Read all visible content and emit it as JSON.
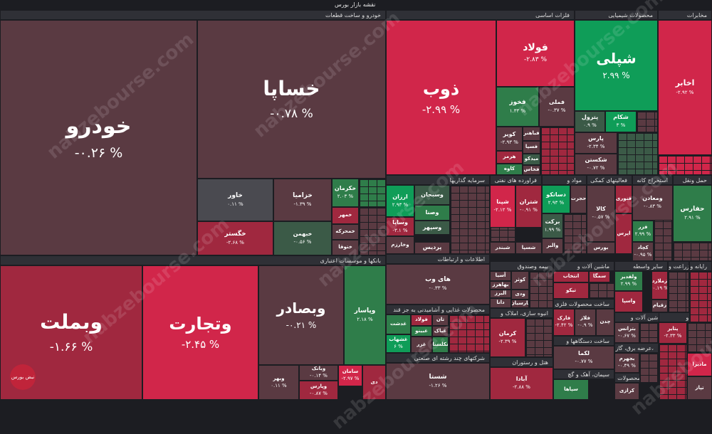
{
  "header": {
    "title": "نقشه بازار بورس"
  },
  "watermark": "nabzebourse.com",
  "logo_text": "نبض بورس",
  "colors": {
    "strong_up": "#0f9d58",
    "up": "#2f7d4a",
    "flat_up": "#3b5a47",
    "flat_down": "#5a3a42",
    "down": "#a0283f",
    "strong_down": "#d1264a",
    "neutral": "#4a4a50"
  },
  "sectors": [
    {
      "label": "خودرو و ساخت قطعات"
    },
    {
      "label": "فلزات اساسی"
    },
    {
      "label": "محصولات شیمیایی"
    },
    {
      "label": "مخابرات"
    },
    {
      "label": "بانکها و موسسات اعتباری"
    },
    {
      "label": "سرمایه گذاریها"
    },
    {
      "label": "فراورده های نفتی"
    },
    {
      "label": "مواد و"
    },
    {
      "label": "فعالیتهای کمکی"
    },
    {
      "label": "استخراج کانه"
    },
    {
      "label": "حمل ونقل"
    },
    {
      "label": "اطلاعات و ارتباطات"
    },
    {
      "label": "بیمه وصندوق"
    },
    {
      "label": "ماشین آلات و"
    },
    {
      "label": "سایر واسطه"
    },
    {
      "label": "زراعت و"
    },
    {
      "label": "رایانه و"
    },
    {
      "label": "محصولات غذایی و آشامیدنی به جز قند"
    },
    {
      "label": "ساخت محصولات فلزی"
    },
    {
      "label": "انبوه سازی، املاک و"
    },
    {
      "label": "ماشین آلات و"
    },
    {
      "label": "لاستیک و"
    },
    {
      "label": "ساخت دستگاهها و"
    },
    {
      "label": "عرضه برق، گاز،"
    },
    {
      "label": "شرکتهای چند رشته ای صنعتی"
    },
    {
      "label": "هتل و رستوران"
    },
    {
      "label": "سیمان، آهک و گچ"
    },
    {
      "label": "سایر محصولات"
    }
  ],
  "tiles": [
    {
      "sym": "خودرو",
      "pct": "-۰.۲۶ %"
    },
    {
      "sym": "خساپا",
      "pct": "-۰.۷۸ %"
    },
    {
      "sym": "خاور",
      "pct": "۰.۱۱ %"
    },
    {
      "sym": "خزامیا",
      "pct": "-۱.۳۹ %"
    },
    {
      "sym": "خکرمان",
      "pct": "۲.۰۳ %"
    },
    {
      "sym": "خگستر",
      "pct": "-۲.۶۸ %"
    },
    {
      "sym": "خبهمن",
      "pct": "-۰.۵۶ %"
    },
    {
      "sym": "خمهر",
      "pct": ""
    },
    {
      "sym": "خمحرکه",
      "pct": ""
    },
    {
      "sym": "ختوقا",
      "pct": ""
    },
    {
      "sym": "ذوب",
      "pct": "-۲.۹۹ %"
    },
    {
      "sym": "فولاد",
      "pct": "-۲.۸۳ %"
    },
    {
      "sym": "فخوز",
      "pct": "۱.۳۳ %"
    },
    {
      "sym": "فملی",
      "pct": "-۰.۳۷ %"
    },
    {
      "sym": "کویر",
      "pct": "-۲.۹۳ %"
    },
    {
      "sym": "فباهنر",
      "pct": ""
    },
    {
      "sym": "فسپا",
      "pct": ""
    },
    {
      "sym": "هرمز",
      "pct": ""
    },
    {
      "sym": "میدکو",
      "pct": ""
    },
    {
      "sym": "کاوه",
      "pct": ""
    },
    {
      "sym": "فخاس",
      "pct": ""
    },
    {
      "sym": "شپلی",
      "pct": "۲.۹۹ %"
    },
    {
      "sym": "پترول",
      "pct": "۰.۹ %"
    },
    {
      "sym": "شکام",
      "pct": "۳ %"
    },
    {
      "sym": "پارس",
      "pct": "-۲.۳۴ %"
    },
    {
      "sym": "شکستن",
      "pct": "-۰.۷۲ %"
    },
    {
      "sym": "اخابر",
      "pct": "-۲.۹۲ %"
    },
    {
      "sym": "وبملت",
      "pct": "-۱.۶۶ %"
    },
    {
      "sym": "وتجارت",
      "pct": "-۲.۴۵ %"
    },
    {
      "sym": "وبصادر",
      "pct": "-۰.۲۱ %"
    },
    {
      "sym": "وپاسار",
      "pct": "۲.۱۸ %"
    },
    {
      "sym": "وخاور",
      "pct": "-۲.۸۶ %"
    },
    {
      "sym": "وبانک",
      "pct": "-۰.۱۴ %"
    },
    {
      "sym": "وپارس",
      "pct": "-۰.۸۷ %"
    },
    {
      "sym": "وبهر",
      "pct": "۰.۱۱ %"
    },
    {
      "sym": "سامان",
      "pct": "-۲.۹۷ %"
    },
    {
      "sym": "دی",
      "pct": ""
    },
    {
      "sym": "ارزان",
      "pct": "۲.۹۳ %"
    },
    {
      "sym": "وسبحان",
      "pct": ""
    },
    {
      "sym": "وصنا",
      "pct": ""
    },
    {
      "sym": "وسپهر",
      "pct": ""
    },
    {
      "sym": "وساپا",
      "pct": "-۳.۱ %"
    },
    {
      "sym": "وخارزم",
      "pct": ""
    },
    {
      "sym": "پردیس",
      "pct": ""
    },
    {
      "sym": "شپنا",
      "pct": "-۲.۱۲ %"
    },
    {
      "sym": "شتران",
      "pct": "-۰.۹۱ %"
    },
    {
      "sym": "شسپا",
      "pct": ""
    },
    {
      "sym": "شبندر",
      "pct": ""
    },
    {
      "sym": "دساتکو",
      "pct": "۲.۹۳ %"
    },
    {
      "sym": "حجرت",
      "pct": ""
    },
    {
      "sym": "برکت",
      "pct": "۱.۹۹ %"
    },
    {
      "sym": "والبر",
      "pct": ""
    },
    {
      "sym": "کالا",
      "pct": "-۰.۵۷ %"
    },
    {
      "sym": "بورس",
      "pct": ""
    },
    {
      "sym": "فنوری",
      "pct": ""
    },
    {
      "sym": "اپرس",
      "pct": ""
    },
    {
      "sym": "ومعادن",
      "pct": "-۰.۸۳ %"
    },
    {
      "sym": "فزر",
      "pct": "۲.۹۹ %"
    },
    {
      "sym": "کچاد",
      "pct": "-۰.۹۵ %"
    },
    {
      "sym": "حفارس",
      "pct": "۲.۹۱ %"
    },
    {
      "sym": "های وب",
      "pct": "-۰.۳۳ %"
    },
    {
      "sym": "آسیا",
      "pct": ""
    },
    {
      "sym": "بهاهرز",
      "pct": ""
    },
    {
      "sym": "البرز",
      "pct": ""
    },
    {
      "sym": "دانا",
      "pct": ""
    },
    {
      "sym": "ودی",
      "pct": ""
    },
    {
      "sym": "پارسیان",
      "pct": ""
    },
    {
      "sym": "کوثر",
      "pct": ""
    },
    {
      "sym": "انتخاب",
      "pct": ""
    },
    {
      "sym": "سمگا",
      "pct": ""
    },
    {
      "sym": "تیکو",
      "pct": ""
    },
    {
      "sym": "ولفدیر",
      "pct": "۲.۹۹ %"
    },
    {
      "sym": "واسپا",
      "pct": ""
    },
    {
      "sym": "زملارد",
      "pct": "-۰.۱۹ %"
    },
    {
      "sym": "زقیام",
      "pct": ""
    },
    {
      "sym": "غدشت",
      "pct": ""
    },
    {
      "sym": "غشهاب",
      "pct": "۶ %"
    },
    {
      "sym": "غبینو",
      "pct": ""
    },
    {
      "sym": "غزر",
      "pct": ""
    },
    {
      "sym": "غپاک",
      "pct": ""
    },
    {
      "sym": "تان",
      "pct": ""
    },
    {
      "sym": "فولاد",
      "pct": ""
    },
    {
      "sym": "نکلسنا",
      "pct": ""
    },
    {
      "sym": "کرمان",
      "pct": "-۲.۳۹ %"
    },
    {
      "sym": "فارک",
      "pct": "-۲.۴۲ %"
    },
    {
      "sym": "فلاز",
      "pct": "-۰.۹ %"
    },
    {
      "sym": "چدن",
      "pct": ""
    },
    {
      "sym": "بترانس",
      "pct": "-۰.۶۷ %"
    },
    {
      "sym": "پتایر",
      "pct": "-۲.۳۳ %"
    },
    {
      "sym": "لکما",
      "pct": "-۰.۷۷ %"
    },
    {
      "sym": "بجهرم",
      "pct": "-۰.۴۹ %"
    },
    {
      "sym": "شستا",
      "pct": "-۱.۲۶ %"
    },
    {
      "sym": "آبادا",
      "pct": "-۲.۸۸ %"
    },
    {
      "sym": "سپاها",
      "pct": ""
    },
    {
      "sym": "کرازی",
      "pct": ""
    },
    {
      "sym": "مادیرا",
      "pct": ""
    },
    {
      "sym": "تپاز",
      "pct": ""
    }
  ]
}
